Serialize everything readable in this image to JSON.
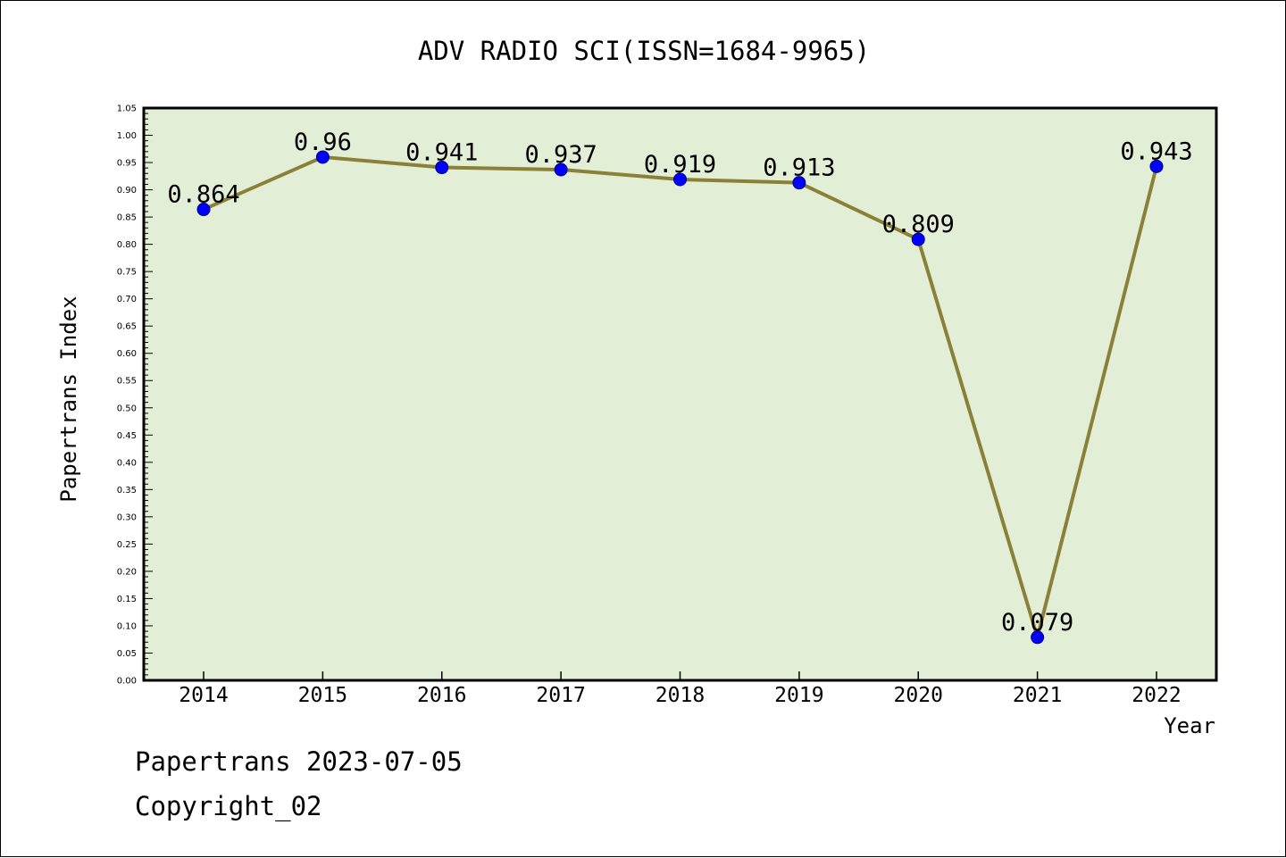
{
  "chart_data": {
    "type": "line",
    "title": "ADV RADIO SCI(ISSN=1684-9965)",
    "xlabel": "Year",
    "ylabel": "Papertrans Index",
    "categories": [
      "2014",
      "2015",
      "2016",
      "2017",
      "2018",
      "2019",
      "2020",
      "2021",
      "2022"
    ],
    "series": [
      {
        "values": [
          0.864,
          0.96,
          0.941,
          0.937,
          0.919,
          0.913,
          0.809,
          0.079,
          0.943
        ],
        "labels": [
          "0.864",
          "0.96",
          "0.941",
          "0.937",
          "0.919",
          "0.913",
          "0.809",
          "0.079",
          "0.943"
        ]
      }
    ],
    "ylim": [
      0,
      1.05
    ],
    "yticks": [
      "0.00",
      "0.05",
      "0.10",
      "0.15",
      "0.20",
      "0.25",
      "0.30",
      "0.35",
      "0.40",
      "0.45",
      "0.50",
      "0.55",
      "0.60",
      "0.65",
      "0.70",
      "0.75",
      "0.80",
      "0.85",
      "0.90",
      "0.95",
      "1.00",
      "1.05"
    ],
    "grid": false,
    "legend": "none"
  },
  "footer": {
    "date_line": "Papertrans 2023-07-05",
    "copyright_line": "Copyright_02"
  },
  "colors": {
    "plot_background": "#e2efd6",
    "line": "#8b8038",
    "marker": "#0000ff",
    "axis": "#000000"
  }
}
